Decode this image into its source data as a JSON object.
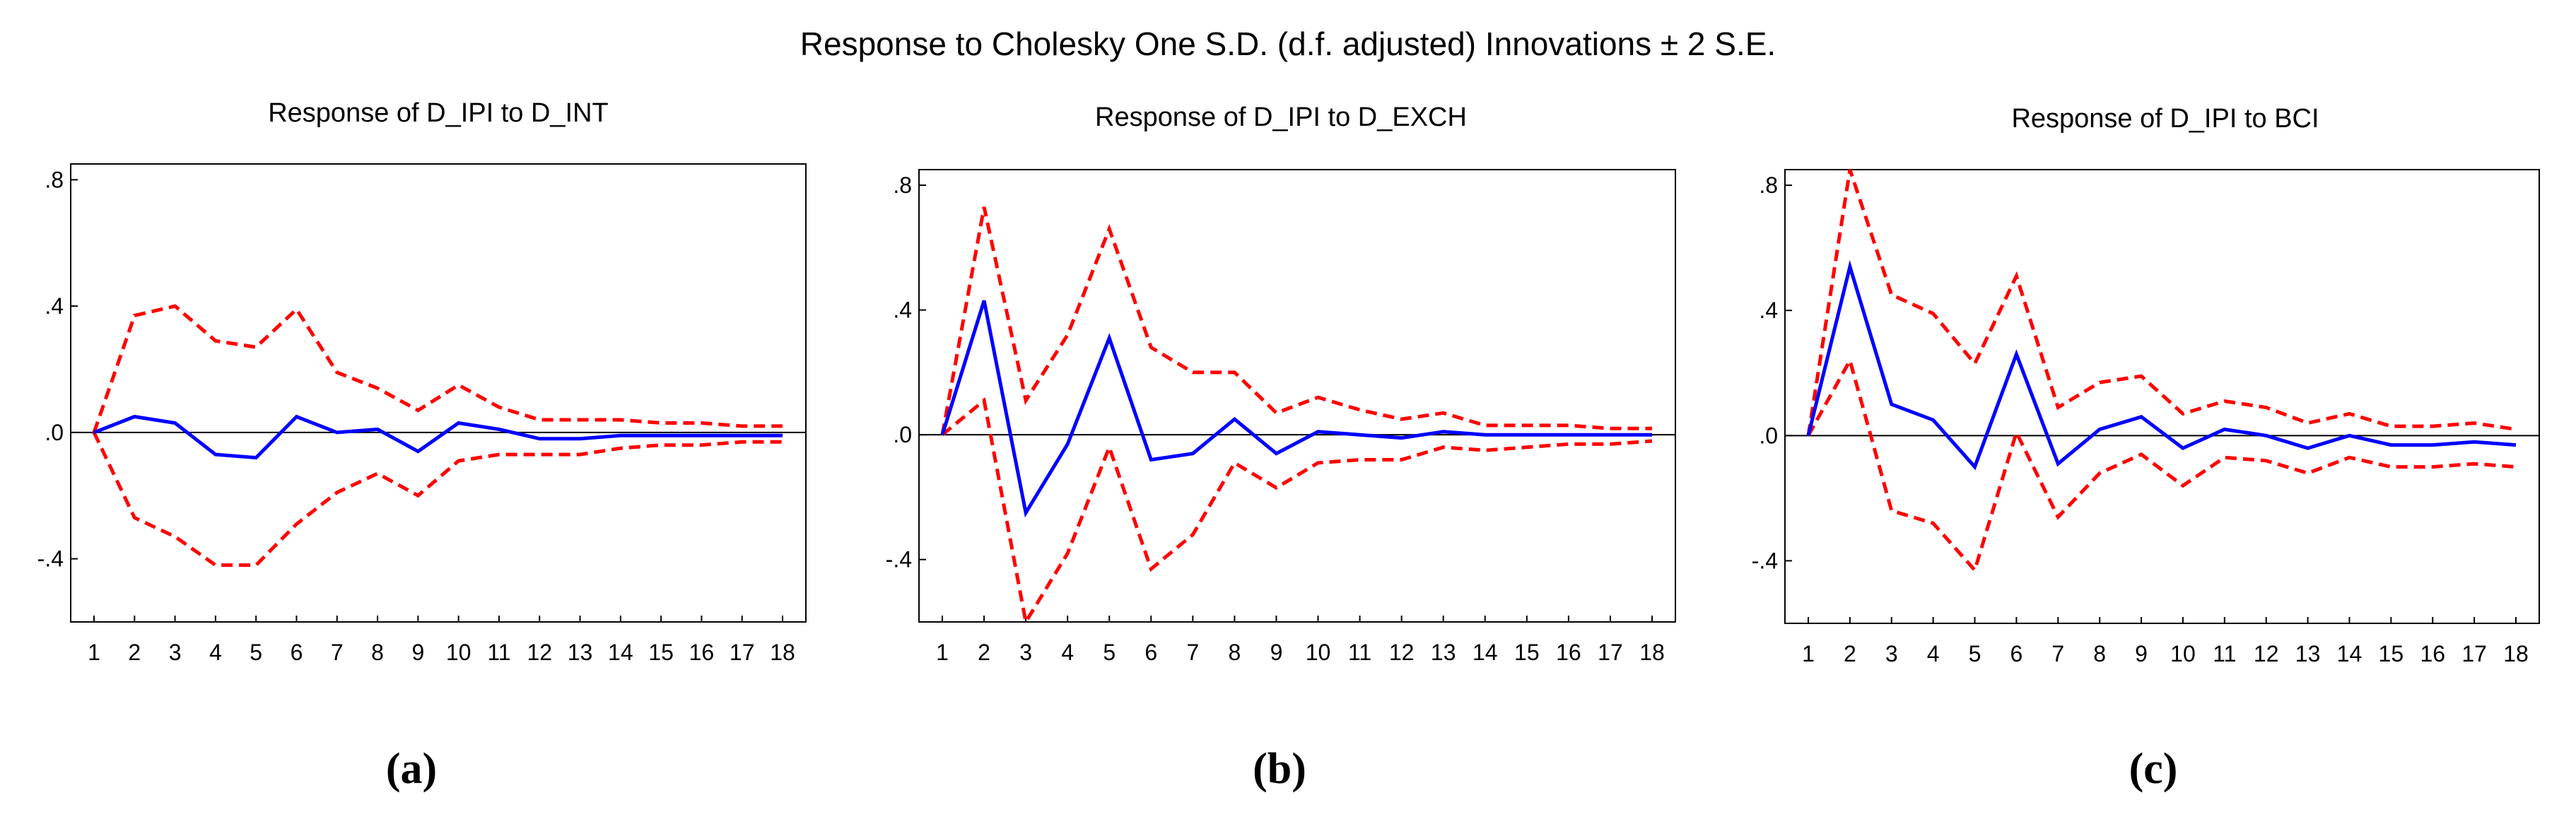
{
  "figure_title": "Response to Cholesky One S.D. (d.f. adjusted) Innovations ± 2 S.E.",
  "chart_data": [
    {
      "type": "line",
      "caption": "(a)",
      "title": "Response of D_IPI to D_INT",
      "x": [
        1,
        2,
        3,
        4,
        5,
        6,
        7,
        8,
        9,
        10,
        11,
        12,
        13,
        14,
        15,
        16,
        17,
        18
      ],
      "ylim": [
        -0.6,
        0.85
      ],
      "yticks": [
        -0.4,
        0.0,
        0.4,
        0.8
      ],
      "ytick_labels": [
        "-.4",
        ".0",
        ".4",
        ".8"
      ],
      "series": [
        {
          "name": "response",
          "color": "#0000ff",
          "dashed": false,
          "values": [
            0.0,
            0.05,
            0.03,
            -0.07,
            -0.08,
            0.05,
            0.0,
            0.01,
            -0.06,
            0.03,
            0.01,
            -0.02,
            -0.02,
            -0.01,
            -0.01,
            -0.01,
            -0.01,
            -0.01
          ]
        },
        {
          "name": "+2 S.E.",
          "color": "#ff0000",
          "dashed": true,
          "values": [
            0.0,
            0.37,
            0.4,
            0.29,
            0.27,
            0.39,
            0.19,
            0.14,
            0.07,
            0.15,
            0.08,
            0.04,
            0.04,
            0.04,
            0.03,
            0.03,
            0.02,
            0.02
          ]
        },
        {
          "name": "-2 S.E.",
          "color": "#ff0000",
          "dashed": true,
          "values": [
            0.0,
            -0.27,
            -0.33,
            -0.42,
            -0.42,
            -0.29,
            -0.19,
            -0.13,
            -0.2,
            -0.09,
            -0.07,
            -0.07,
            -0.07,
            -0.05,
            -0.04,
            -0.04,
            -0.03,
            -0.03
          ]
        }
      ]
    },
    {
      "type": "line",
      "caption": "(b)",
      "title": "Response of D_IPI to D_EXCH",
      "x": [
        1,
        2,
        3,
        4,
        5,
        6,
        7,
        8,
        9,
        10,
        11,
        12,
        13,
        14,
        15,
        16,
        17,
        18
      ],
      "ylim": [
        -0.6,
        0.85
      ],
      "yticks": [
        -0.4,
        0.0,
        0.4,
        0.8
      ],
      "ytick_labels": [
        "-.4",
        ".0",
        ".4",
        ".8"
      ],
      "series": [
        {
          "name": "response",
          "color": "#0000ff",
          "dashed": false,
          "values": [
            0.0,
            0.43,
            -0.25,
            -0.03,
            0.31,
            -0.08,
            -0.06,
            0.05,
            -0.06,
            0.01,
            0.0,
            -0.01,
            0.01,
            0.0,
            0.0,
            0.0,
            0.0,
            0.0
          ]
        },
        {
          "name": "+2 S.E.",
          "color": "#ff0000",
          "dashed": true,
          "values": [
            0.0,
            0.73,
            0.11,
            0.32,
            0.66,
            0.28,
            0.2,
            0.2,
            0.07,
            0.12,
            0.08,
            0.05,
            0.07,
            0.03,
            0.03,
            0.03,
            0.02,
            0.02
          ]
        },
        {
          "name": "-2 S.E.",
          "color": "#ff0000",
          "dashed": true,
          "values": [
            0.0,
            0.11,
            -0.6,
            -0.38,
            -0.04,
            -0.43,
            -0.32,
            -0.09,
            -0.17,
            -0.09,
            -0.08,
            -0.08,
            -0.04,
            -0.05,
            -0.04,
            -0.03,
            -0.03,
            -0.02
          ]
        }
      ]
    },
    {
      "type": "line",
      "caption": "(c)",
      "title": "Response of D_IPI to BCI",
      "x": [
        1,
        2,
        3,
        4,
        5,
        6,
        7,
        8,
        9,
        10,
        11,
        12,
        13,
        14,
        15,
        16,
        17,
        18
      ],
      "ylim": [
        -0.6,
        0.85
      ],
      "yticks": [
        -0.4,
        0.0,
        0.4,
        0.8
      ],
      "ytick_labels": [
        "-.4",
        ".0",
        ".4",
        ".8"
      ],
      "series": [
        {
          "name": "response",
          "color": "#0000ff",
          "dashed": false,
          "values": [
            0.0,
            0.54,
            0.1,
            0.05,
            -0.1,
            0.26,
            -0.09,
            0.02,
            0.06,
            -0.04,
            0.02,
            0.0,
            -0.04,
            0.0,
            -0.03,
            -0.03,
            -0.02,
            -0.03
          ]
        },
        {
          "name": "+2 S.E.",
          "color": "#ff0000",
          "dashed": true,
          "values": [
            0.0,
            0.85,
            0.45,
            0.39,
            0.23,
            0.51,
            0.09,
            0.17,
            0.19,
            0.07,
            0.11,
            0.09,
            0.04,
            0.07,
            0.03,
            0.03,
            0.04,
            0.02
          ]
        },
        {
          "name": "-2 S.E.",
          "color": "#ff0000",
          "dashed": true,
          "values": [
            0.0,
            0.24,
            -0.24,
            -0.28,
            -0.43,
            0.01,
            -0.26,
            -0.12,
            -0.06,
            -0.16,
            -0.07,
            -0.08,
            -0.12,
            -0.07,
            -0.1,
            -0.1,
            -0.09,
            -0.1
          ]
        }
      ]
    }
  ]
}
